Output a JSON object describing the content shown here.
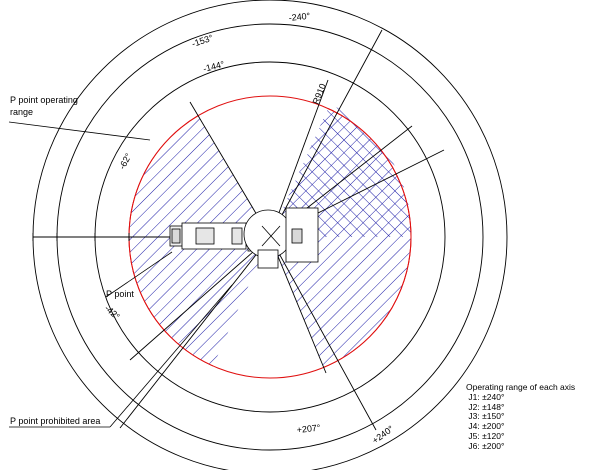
{
  "diagram": {
    "labels": {
      "p_point_operating_range": [
        "P point operating",
        "range"
      ],
      "p_point": "P point",
      "p_point_prohibited_area": "P point prohibited area",
      "radius": "R910",
      "ang_neg_240": "-240°",
      "ang_neg_153": "-153°",
      "ang_neg_144": "-144°",
      "ang_neg_62": "-62°",
      "ang_neg_42": "-42°",
      "ang_pos_207": "+207°",
      "ang_pos_240": "+240°"
    },
    "operating_range_title": "Operating range of each axis",
    "axes": [
      {
        "joint": "J1:",
        "range": "±240°"
      },
      {
        "joint": "J2:",
        "range": "±148°"
      },
      {
        "joint": "J3:",
        "range": "±150°"
      },
      {
        "joint": "J4:",
        "range": "±200°"
      },
      {
        "joint": "J5:",
        "range": "±120°"
      },
      {
        "joint": "J6:",
        "range": "±200°"
      }
    ],
    "colors": {
      "operating_hatch": "#1f1fa8",
      "boundary": "#e01010",
      "line": "#000000"
    }
  }
}
